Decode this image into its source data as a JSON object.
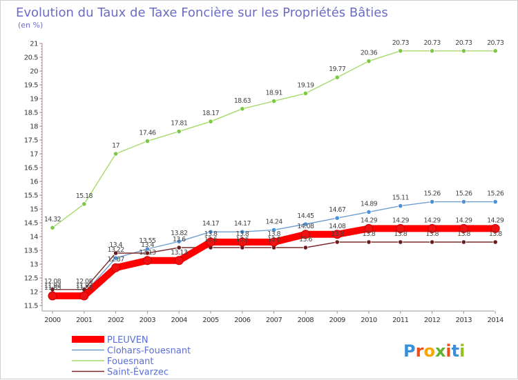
{
  "chart_data": {
    "type": "line",
    "title": "Evolution du Taux de Taxe Foncière sur les Propriétés Bâties",
    "unit_label": "(en %)",
    "x": [
      "2000",
      "2001",
      "2002",
      "2003",
      "2004",
      "2005",
      "2006",
      "2007",
      "2008",
      "2009",
      "2010",
      "2011",
      "2012",
      "2013",
      "2014"
    ],
    "y_ticks": [
      "11.5",
      "12",
      "12.5",
      "13",
      "13.5",
      "14",
      "14.5",
      "15",
      "15.5",
      "16",
      "16.5",
      "17",
      "17.5",
      "18",
      "18.5",
      "19",
      "19.5",
      "20",
      "20.5",
      "21"
    ],
    "ylim": [
      11.5,
      21
    ],
    "grid": false,
    "legend_position": "bottom-left",
    "series": [
      {
        "name": "PLEUVEN",
        "color": "#ff0000",
        "marker_color": "#ee1111",
        "values": [
          11.85,
          11.85,
          12.87,
          13.13,
          13.13,
          13.8,
          13.8,
          13.8,
          14.08,
          14.08,
          14.29,
          14.29,
          14.29,
          14.29,
          14.29
        ],
        "labels": [
          "11.85",
          "11.85",
          "12.87",
          "13.13",
          "13.13",
          "13.8",
          "13.8",
          "13.8",
          "14.08",
          "14.08",
          "14.29",
          "14.29",
          "14.29",
          "14.29",
          "14.29"
        ]
      },
      {
        "name": "Clohars-Fouesnant",
        "color": "#6f9fd0",
        "marker_color": "#4a90d9",
        "values": [
          11.93,
          11.93,
          13.22,
          13.55,
          13.82,
          14.17,
          14.17,
          14.24,
          14.45,
          14.67,
          14.89,
          15.11,
          15.26,
          15.26,
          15.26
        ],
        "labels": [
          "11.93",
          "11.93",
          "13.22",
          "13.55",
          "13.82",
          "14.17",
          "14.17",
          "14.24",
          "14.45",
          "14.67",
          "14.89",
          "15.11",
          "15.26",
          "15.26",
          "15.26"
        ]
      },
      {
        "name": "Fouesnant",
        "color": "#a6d96a",
        "marker_color": "#7ac943",
        "values": [
          14.32,
          15.18,
          17,
          17.46,
          17.81,
          18.17,
          18.63,
          18.91,
          19.19,
          19.77,
          20.36,
          20.73,
          20.73,
          20.73,
          20.73
        ],
        "labels": [
          "14.32",
          "15.18",
          "17",
          "17.46",
          "17.81",
          "18.17",
          "18.63",
          "18.91",
          "19.19",
          "19.77",
          "20.36",
          "20.73",
          "20.73",
          "20.73",
          "20.73"
        ]
      },
      {
        "name": "Saint-Évarzec",
        "color": "#7a2a2a",
        "marker_color": "#6b1a1a",
        "values": [
          12.08,
          12.08,
          13.4,
          13.4,
          13.6,
          13.6,
          13.6,
          13.6,
          13.6,
          13.8,
          13.8,
          13.8,
          13.8,
          13.8,
          13.8
        ],
        "labels": [
          "12.08",
          "12.08",
          "13.4",
          "13.4",
          "13.6",
          "13.6",
          "13.6",
          "13.6",
          "13.6",
          "13.8",
          "13.8",
          "13.8",
          "13.8",
          "13.8",
          "13.8"
        ]
      }
    ]
  },
  "logo": {
    "text": "Proxiti"
  }
}
